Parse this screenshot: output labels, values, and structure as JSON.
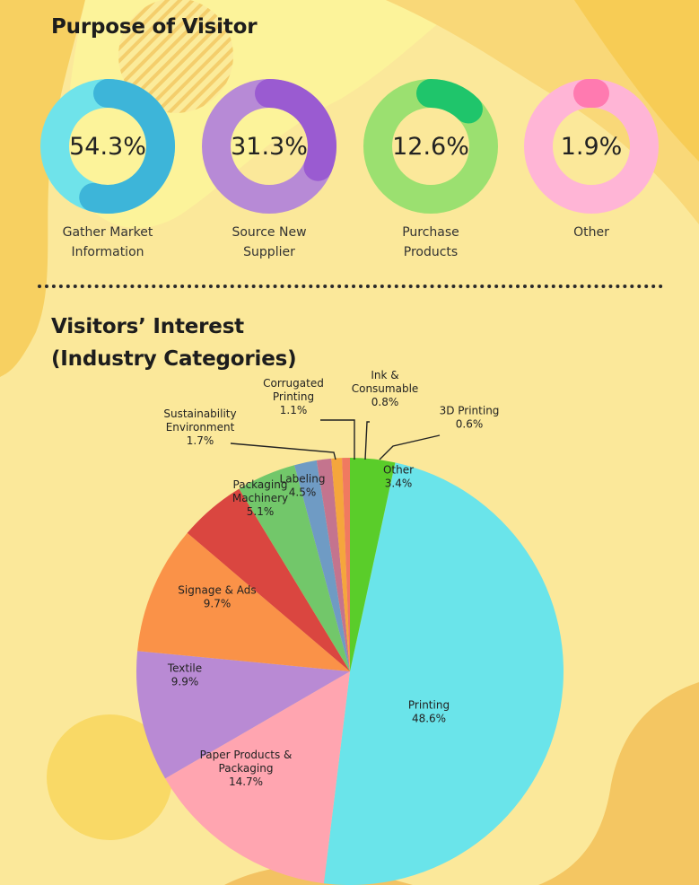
{
  "purpose": {
    "title": "Purpose of Visitor",
    "items": [
      {
        "value": "54.3%",
        "label_line1": "Gather Market",
        "label_line2": "Information",
        "ring_color": "#6fe3ea",
        "arc_color": "#3db5d9"
      },
      {
        "value": "31.3%",
        "label_line1": "Source New",
        "label_line2": "Supplier",
        "ring_color": "#b78ad6",
        "arc_color": "#9a5bd1"
      },
      {
        "value": "12.6%",
        "label_line1": "Purchase",
        "label_line2": "Products",
        "ring_color": "#9be070",
        "arc_color": "#1fc56b"
      },
      {
        "value": "1.9%",
        "label_line1": "Other",
        "label_line2": "",
        "ring_color": "#ffb5d6",
        "arc_color": "#ff7ab0"
      }
    ]
  },
  "interest": {
    "title_line1": "Visitors’ Interest",
    "title_line2": "(Industry Categories)"
  },
  "chart_data": [
    {
      "type": "pie",
      "title": "Purpose of Visitor",
      "style": "donut-per-category",
      "slices": [
        {
          "label": "Gather Market Information",
          "value": 54.3
        },
        {
          "label": "Source New Supplier",
          "value": 31.3
        },
        {
          "label": "Purchase Products",
          "value": 12.6
        },
        {
          "label": "Other",
          "value": 1.9
        }
      ]
    },
    {
      "type": "pie",
      "title": "Visitors’ Interest (Industry Categories)",
      "slices": [
        {
          "label": "Printing",
          "value": 48.6,
          "color": "#6ae4ea",
          "text_lines": [
            "Printing",
            "48.6%"
          ]
        },
        {
          "label": "Paper Products & Packaging",
          "value": 14.7,
          "color": "#ffa5b0",
          "text_lines": [
            "Paper Products &",
            "Packaging",
            "14.7%"
          ]
        },
        {
          "label": "Textile",
          "value": 9.9,
          "color": "#b98ad4",
          "text_lines": [
            "Textile",
            "9.9%"
          ]
        },
        {
          "label": "Signage & Ads",
          "value": 9.7,
          "color": "#fa9248",
          "text_lines": [
            "Signage & Ads",
            "9.7%"
          ]
        },
        {
          "label": "Packaging Machinery",
          "value": 5.1,
          "color": "#da4640",
          "text_lines": [
            "Packaging",
            "Machinery",
            "5.1%"
          ]
        },
        {
          "label": "Labeling",
          "value": 4.5,
          "color": "#72c76a",
          "text_lines": [
            "Labeling",
            "4.5%"
          ]
        },
        {
          "label": "Sustainability Environment",
          "value": 1.7,
          "color": "#6f9bc4",
          "text_lines": [
            "Sustainability",
            "Environment",
            "1.7%"
          ]
        },
        {
          "label": "Corrugated Printing",
          "value": 1.1,
          "color": "#c4748e",
          "text_lines": [
            "Corrugated",
            "Printing",
            "1.1%"
          ]
        },
        {
          "label": "Ink & Consumable",
          "value": 0.8,
          "color": "#f5a63c",
          "text_lines": [
            "Ink &",
            "Consumable",
            "0.8%"
          ]
        },
        {
          "label": "3D Printing",
          "value": 0.6,
          "color": "#f07a60",
          "text_lines": [
            "3D Printing",
            "0.6%"
          ]
        },
        {
          "label": "Other",
          "value": 3.4,
          "color": "#5acd2a",
          "text_lines": [
            "Other",
            "3.4%"
          ]
        }
      ]
    }
  ]
}
